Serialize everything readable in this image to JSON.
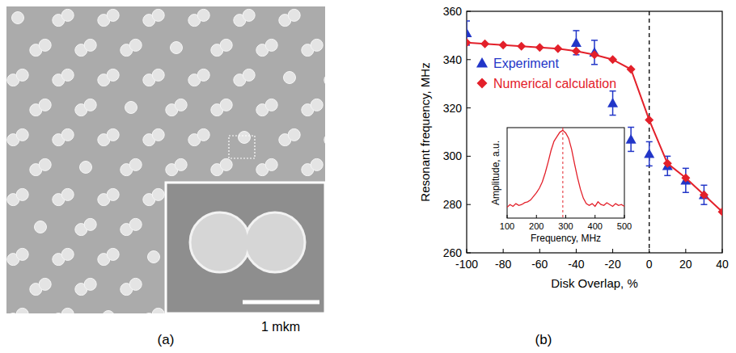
{
  "image_panel": {
    "panel_label": "(a)",
    "scale_bar_label": "1 mkm"
  },
  "chart_data": [
    {
      "type": "line",
      "panel_label": "(b)",
      "x_label": "Disk Overlap, %",
      "y_label": "Resonant frequency, MHz",
      "xlim": [
        -100,
        40
      ],
      "ylim": [
        260,
        360
      ],
      "xticks": [
        -100,
        -80,
        -60,
        -40,
        -20,
        0,
        20,
        40
      ],
      "yticks": [
        260,
        280,
        300,
        320,
        340,
        360
      ],
      "legend": "upper left",
      "reference_line_x": 0,
      "series": [
        {
          "name": "Experiment",
          "type": "scatter",
          "color": "#2236c8",
          "marker": "triangle",
          "x": [
            -100,
            -40,
            -30,
            -20,
            -10,
            0,
            10,
            20,
            30
          ],
          "values": [
            351,
            347,
            343,
            322,
            307,
            301,
            296,
            290,
            284
          ],
          "errors": [
            5,
            5,
            5,
            5,
            5,
            5,
            4,
            5,
            4
          ]
        },
        {
          "name": "Numerical calculation",
          "type": "line",
          "color": "#e3202a",
          "marker": "diamond",
          "line_style": "solid",
          "x": [
            -100,
            -90,
            -80,
            -70,
            -60,
            -50,
            -40,
            -30,
            -20,
            -10,
            0,
            10,
            20,
            30,
            40
          ],
          "values": [
            347,
            346.5,
            346,
            345.5,
            345,
            344.5,
            343.5,
            342,
            340,
            336,
            315,
            297,
            291,
            284,
            277
          ]
        }
      ]
    },
    {
      "type": "line",
      "x_label": "Frequency, MHz",
      "y_label": "Amplitude, a.u.",
      "xlim": [
        100,
        500
      ],
      "ylim": [
        0,
        1
      ],
      "xticks": [
        100,
        200,
        300,
        400,
        500
      ],
      "tick_labels": "x",
      "reference_line_x": 290,
      "series": [
        {
          "color": "#e3202a",
          "line_style": "solid",
          "x": [
            100,
            110,
            120,
            130,
            140,
            150,
            160,
            170,
            180,
            190,
            200,
            210,
            220,
            230,
            240,
            250,
            260,
            270,
            280,
            290,
            300,
            310,
            320,
            330,
            340,
            350,
            360,
            370,
            380,
            390,
            400,
            410,
            420,
            430,
            440,
            450,
            460,
            470,
            480,
            490,
            500
          ],
          "values": [
            0.12,
            0.15,
            0.13,
            0.16,
            0.14,
            0.15,
            0.17,
            0.18,
            0.2,
            0.24,
            0.28,
            0.33,
            0.4,
            0.5,
            0.62,
            0.75,
            0.85,
            0.9,
            0.95,
            0.97,
            0.94,
            0.88,
            0.76,
            0.6,
            0.45,
            0.32,
            0.22,
            0.16,
            0.14,
            0.16,
            0.13,
            0.18,
            0.15,
            0.14,
            0.17,
            0.15,
            0.13,
            0.16,
            0.14,
            0.15,
            0.13
          ]
        }
      ]
    }
  ]
}
